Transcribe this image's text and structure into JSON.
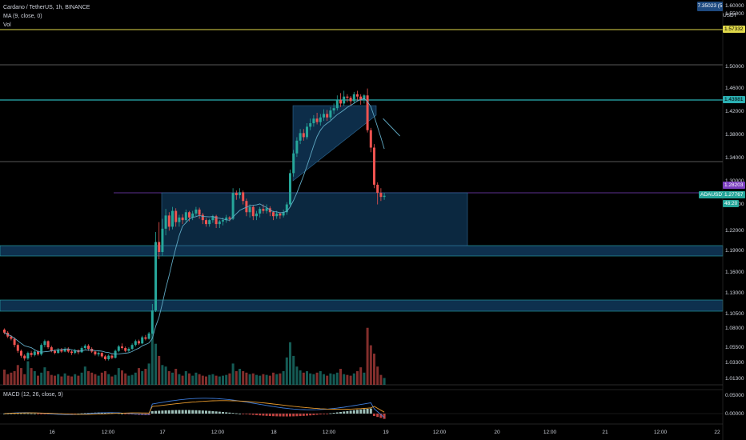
{
  "legend": {
    "symbol": "Cardano / TetherUS, 1h, BINANCE",
    "ma": "MA (9, close, 0)",
    "vol": "Vol"
  },
  "macd_legend": "MACD (12, 26, close, 9)",
  "top_box": "7.35023 (5",
  "currency": "USDT",
  "price_axis": [
    "1.60000",
    "1.55000",
    "1.50000",
    "1.46000",
    "1.42000",
    "1.38000",
    "1.34000",
    "1.30000",
    "1.26000",
    "1.22000",
    "1.19000",
    "1.16000",
    "1.13000",
    "1.10500",
    "1.08000",
    "1.05500",
    "1.03300",
    "1.01300"
  ],
  "macd_axis": [
    "0.05000",
    "0.00000"
  ],
  "tags": {
    "yellow": "1.57332",
    "cyan": "1.43981",
    "purple": "1.28203",
    "current_label": "ADAUSDT",
    "current_price": "1.27767",
    "countdown": "48:20"
  },
  "time_axis": [
    "16",
    "12:00",
    "17",
    "12:00",
    "18",
    "12:00",
    "19",
    "12:00",
    "20",
    "12:00",
    "21",
    "12:00",
    "22"
  ],
  "colors": {
    "up": "#26a69a",
    "down": "#ef5350",
    "ma": "#5fa8c2",
    "box": "#0f3556",
    "cyan": "#2bb0b3",
    "yellow": "#e0d84a",
    "purple": "#7b3fbf"
  },
  "chart_data": {
    "type": "candlestick",
    "candles": [
      [
        1.08,
        1.076,
        1.082,
        1.074
      ],
      [
        1.076,
        1.071,
        1.078,
        1.069
      ],
      [
        1.071,
        1.068,
        1.073,
        1.066
      ],
      [
        1.068,
        1.06,
        1.07,
        1.057
      ],
      [
        1.06,
        1.052,
        1.062,
        1.049
      ],
      [
        1.052,
        1.045,
        1.054,
        1.042
      ],
      [
        1.045,
        1.041,
        1.047,
        1.038
      ],
      [
        1.041,
        1.049,
        1.051,
        1.039
      ],
      [
        1.049,
        1.046,
        1.052,
        1.043
      ],
      [
        1.046,
        1.051,
        1.054,
        1.044
      ],
      [
        1.051,
        1.047,
        1.053,
        1.045
      ],
      [
        1.047,
        1.06,
        1.062,
        1.045
      ],
      [
        1.06,
        1.065,
        1.067,
        1.057
      ],
      [
        1.065,
        1.057,
        1.066,
        1.055
      ],
      [
        1.057,
        1.052,
        1.059,
        1.05
      ],
      [
        1.052,
        1.049,
        1.054,
        1.047
      ],
      [
        1.049,
        1.054,
        1.056,
        1.048
      ],
      [
        1.054,
        1.051,
        1.056,
        1.049
      ],
      [
        1.051,
        1.055,
        1.057,
        1.05
      ],
      [
        1.055,
        1.051,
        1.057,
        1.049
      ],
      [
        1.051,
        1.049,
        1.053,
        1.046
      ],
      [
        1.049,
        1.053,
        1.055,
        1.047
      ],
      [
        1.053,
        1.05,
        1.054,
        1.047
      ],
      [
        1.05,
        1.056,
        1.058,
        1.049
      ],
      [
        1.056,
        1.059,
        1.061,
        1.054
      ],
      [
        1.059,
        1.055,
        1.061,
        1.052
      ],
      [
        1.055,
        1.051,
        1.057,
        1.049
      ],
      [
        1.051,
        1.047,
        1.053,
        1.045
      ],
      [
        1.047,
        1.049,
        1.051,
        1.044
      ],
      [
        1.049,
        1.044,
        1.05,
        1.042
      ],
      [
        1.044,
        1.04,
        1.046,
        1.038
      ],
      [
        1.04,
        1.045,
        1.047,
        1.038
      ],
      [
        1.045,
        1.042,
        1.047,
        1.04
      ],
      [
        1.042,
        1.052,
        1.054,
        1.041
      ],
      [
        1.052,
        1.058,
        1.06,
        1.05
      ],
      [
        1.058,
        1.056,
        1.062,
        1.054
      ],
      [
        1.056,
        1.052,
        1.058,
        1.05
      ],
      [
        1.052,
        1.055,
        1.057,
        1.05
      ],
      [
        1.055,
        1.06,
        1.062,
        1.053
      ],
      [
        1.06,
        1.065,
        1.067,
        1.058
      ],
      [
        1.065,
        1.062,
        1.067,
        1.06
      ],
      [
        1.062,
        1.07,
        1.072,
        1.061
      ],
      [
        1.07,
        1.068,
        1.073,
        1.066
      ],
      [
        1.068,
        1.075,
        1.077,
        1.067
      ],
      [
        1.075,
        1.11,
        1.118,
        1.074
      ],
      [
        1.11,
        1.205,
        1.22,
        1.108
      ],
      [
        1.205,
        1.19,
        1.235,
        1.18
      ],
      [
        1.19,
        1.225,
        1.24,
        1.185
      ],
      [
        1.225,
        1.245,
        1.255,
        1.215
      ],
      [
        1.245,
        1.228,
        1.25,
        1.222
      ],
      [
        1.228,
        1.252,
        1.258,
        1.224
      ],
      [
        1.252,
        1.235,
        1.256,
        1.228
      ],
      [
        1.235,
        1.242,
        1.246,
        1.228
      ],
      [
        1.242,
        1.238,
        1.247,
        1.232
      ],
      [
        1.238,
        1.25,
        1.254,
        1.234
      ],
      [
        1.25,
        1.242,
        1.252,
        1.236
      ],
      [
        1.242,
        1.248,
        1.252,
        1.238
      ],
      [
        1.248,
        1.254,
        1.258,
        1.244
      ],
      [
        1.254,
        1.246,
        1.257,
        1.24
      ],
      [
        1.246,
        1.238,
        1.249,
        1.232
      ],
      [
        1.238,
        1.232,
        1.241,
        1.228
      ],
      [
        1.232,
        1.238,
        1.24,
        1.228
      ],
      [
        1.238,
        1.244,
        1.246,
        1.234
      ],
      [
        1.244,
        1.232,
        1.246,
        1.226
      ],
      [
        1.232,
        1.236,
        1.238,
        1.226
      ],
      [
        1.236,
        1.238,
        1.242,
        1.23
      ],
      [
        1.238,
        1.242,
        1.246,
        1.234
      ],
      [
        1.242,
        1.24,
        1.244,
        1.236
      ],
      [
        1.24,
        1.282,
        1.29,
        1.238
      ],
      [
        1.282,
        1.278,
        1.286,
        1.27
      ],
      [
        1.278,
        1.283,
        1.29,
        1.272
      ],
      [
        1.283,
        1.268,
        1.286,
        1.262
      ],
      [
        1.268,
        1.25,
        1.272,
        1.244
      ],
      [
        1.25,
        1.258,
        1.262,
        1.242
      ],
      [
        1.258,
        1.244,
        1.26,
        1.238
      ],
      [
        1.244,
        1.248,
        1.252,
        1.238
      ],
      [
        1.248,
        1.255,
        1.258,
        1.242
      ],
      [
        1.255,
        1.252,
        1.262,
        1.248
      ],
      [
        1.252,
        1.256,
        1.262,
        1.248
      ],
      [
        1.256,
        1.25,
        1.259,
        1.244
      ],
      [
        1.25,
        1.244,
        1.252,
        1.238
      ],
      [
        1.244,
        1.248,
        1.252,
        1.24
      ],
      [
        1.248,
        1.245,
        1.25,
        1.24
      ],
      [
        1.245,
        1.25,
        1.254,
        1.242
      ],
      [
        1.25,
        1.262,
        1.266,
        1.246
      ],
      [
        1.262,
        1.316,
        1.322,
        1.258
      ],
      [
        1.316,
        1.35,
        1.356,
        1.31
      ],
      [
        1.35,
        1.372,
        1.378,
        1.344
      ],
      [
        1.372,
        1.385,
        1.392,
        1.366
      ],
      [
        1.385,
        1.378,
        1.392,
        1.372
      ],
      [
        1.378,
        1.396,
        1.402,
        1.374
      ],
      [
        1.396,
        1.402,
        1.41,
        1.39
      ],
      [
        1.402,
        1.41,
        1.416,
        1.396
      ],
      [
        1.41,
        1.404,
        1.42,
        1.4
      ],
      [
        1.404,
        1.412,
        1.418,
        1.398
      ],
      [
        1.412,
        1.418,
        1.426,
        1.406
      ],
      [
        1.418,
        1.412,
        1.425,
        1.406
      ],
      [
        1.412,
        1.424,
        1.43,
        1.408
      ],
      [
        1.424,
        1.428,
        1.436,
        1.418
      ],
      [
        1.428,
        1.442,
        1.45,
        1.424
      ],
      [
        1.442,
        1.436,
        1.454,
        1.43
      ],
      [
        1.436,
        1.448,
        1.458,
        1.432
      ],
      [
        1.448,
        1.446,
        1.452,
        1.438
      ],
      [
        1.446,
        1.44,
        1.449,
        1.432
      ],
      [
        1.44,
        1.452,
        1.456,
        1.436
      ],
      [
        1.452,
        1.448,
        1.458,
        1.44
      ],
      [
        1.448,
        1.442,
        1.452,
        1.434
      ],
      [
        1.442,
        1.45,
        1.452,
        1.436
      ],
      [
        1.45,
        1.39,
        1.462,
        1.386
      ],
      [
        1.39,
        1.36,
        1.394,
        1.352
      ],
      [
        1.36,
        1.296,
        1.366,
        1.29
      ],
      [
        1.296,
        1.282,
        1.3,
        1.262
      ],
      [
        1.282,
        1.275,
        1.29,
        1.268
      ],
      [
        1.275,
        1.277,
        1.282,
        1.27
      ]
    ],
    "volume": [
      2,
      1.4,
      1.6,
      1.8,
      2.6,
      2.2,
      1.4,
      3.1,
      2.2,
      1.8,
      1.2,
      1.6,
      2.3,
      1.8,
      1.3,
      1.2,
      1.4,
      1.1,
      1.5,
      1.2,
      1.1,
      1.4,
      1.2,
      1.6,
      2.4,
      1.8,
      1.6,
      1.4,
      1.2,
      1.6,
      1.8,
      1.4,
      1.1,
      1.3,
      2.2,
      1.9,
      1.5,
      1.2,
      1.3,
      1.6,
      2.2,
      1.8,
      2.1,
      2.8,
      6.8,
      5.4,
      3.8,
      2.6,
      2.4,
      1.8,
      1.6,
      2.1,
      1.4,
      1.2,
      1.8,
      1.5,
      1.2,
      1.6,
      1.4,
      1.2,
      1.1,
      1.3,
      1.4,
      1.2,
      1.1,
      1.2,
      1.3,
      1.5,
      2.8,
      1.8,
      2.1,
      1.8,
      1.6,
      1.4,
      1.5,
      1.3,
      1.2,
      1.4,
      1.3,
      1.2,
      1.6,
      1.4,
      1.5,
      1.8,
      3.6,
      5.6,
      3.8,
      2.4,
      1.9,
      1.6,
      1.8,
      1.5,
      1.4,
      1.6,
      1.8,
      1.4,
      1.2,
      1.5,
      1.4,
      1.6,
      2.1,
      1.4,
      1.3,
      1.2,
      1.5,
      1.8,
      2.3,
      1.6,
      7.5,
      5.2,
      4.1,
      2.4,
      1.3,
      0.9
    ],
    "price_range": [
      1.0,
      1.62
    ]
  }
}
